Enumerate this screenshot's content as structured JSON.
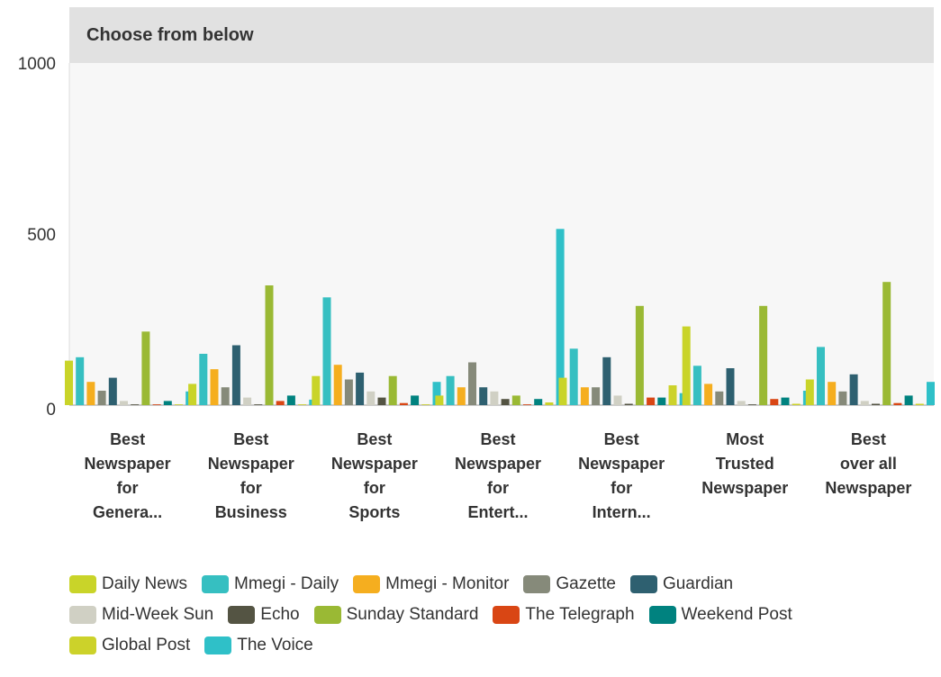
{
  "header": {
    "title": "Choose from below"
  },
  "chart_data": {
    "type": "bar",
    "title": "",
    "xlabel": "",
    "ylabel": "",
    "ylim": [
      0,
      1000
    ],
    "yticks": [
      0,
      500,
      1000
    ],
    "legend_position": "bottom",
    "categories": [
      [
        "Best",
        "Newspaper",
        "for",
        "Genera..."
      ],
      [
        "Best",
        "Newspaper",
        "for",
        "Business"
      ],
      [
        "Best",
        "Newspaper",
        "for",
        "Sports"
      ],
      [
        "Best",
        "Newspaper",
        "for",
        "Entert..."
      ],
      [
        "Best",
        "Newspaper",
        "for",
        "Intern..."
      ],
      [
        "Most",
        "Trusted",
        "Newspaper"
      ],
      [
        "Best",
        "over all",
        "Newspaper"
      ]
    ],
    "series": [
      {
        "name": "Daily News",
        "color": "#c9d429",
        "values": [
          130,
          62,
          85,
          28,
          80,
          230,
          75
        ]
      },
      {
        "name": "Mmegi - Daily",
        "color": "#36bfc1",
        "values": [
          140,
          150,
          315,
          85,
          165,
          115,
          170
        ]
      },
      {
        "name": "Mmegi - Monitor",
        "color": "#f5ae1f",
        "values": [
          68,
          105,
          118,
          52,
          52,
          62,
          68
        ]
      },
      {
        "name": "Gazette",
        "color": "#868a7a",
        "values": [
          42,
          52,
          75,
          125,
          52,
          40,
          40
        ]
      },
      {
        "name": "Guardian",
        "color": "#2e6070",
        "values": [
          80,
          175,
          95,
          52,
          140,
          108,
          90
        ]
      },
      {
        "name": "Mid-Week Sun",
        "color": "#d0d0c4",
        "values": [
          12,
          22,
          40,
          40,
          28,
          12,
          12
        ]
      },
      {
        "name": "Echo",
        "color": "#545443",
        "values": [
          2,
          2,
          22,
          18,
          4,
          2,
          4
        ]
      },
      {
        "name": "Sunday Standard",
        "color": "#9ab934",
        "values": [
          215,
          350,
          85,
          28,
          290,
          290,
          360
        ]
      },
      {
        "name": "The Telegraph",
        "color": "#d94614",
        "values": [
          2,
          12,
          6,
          2,
          22,
          18,
          6
        ]
      },
      {
        "name": "Weekend Post",
        "color": "#00827f",
        "values": [
          12,
          28,
          28,
          18,
          22,
          22,
          28
        ]
      },
      {
        "name": "Global Post",
        "color": "#ccd22a",
        "values": [
          2,
          2,
          2,
          8,
          58,
          4,
          4
        ]
      },
      {
        "name": "The Voice",
        "color": "#2fc0c8",
        "values": [
          40,
          16,
          68,
          515,
          35,
          42,
          68
        ]
      }
    ]
  }
}
